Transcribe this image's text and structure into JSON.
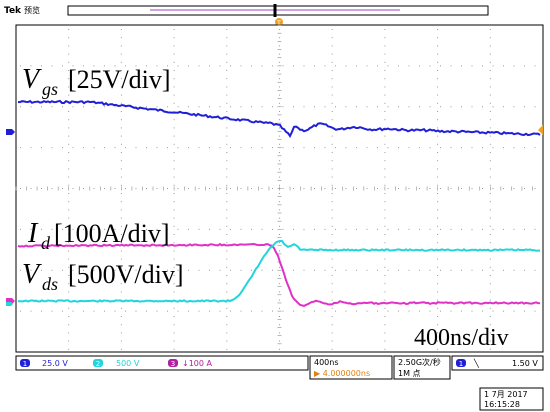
{
  "header": {
    "brand": "Tek",
    "mode": "预览"
  },
  "labels": {
    "ch1_sym": "V",
    "ch1_sub": "gs",
    "ch1_scale": "[25V/div]",
    "ch3_sym": "I",
    "ch3_sub": "d",
    "ch3_scale": "[100A/div]",
    "ch2_sym": "V",
    "ch2_sub": "ds",
    "ch2_scale": "[500V/div]",
    "timebase": "400ns/div"
  },
  "status": {
    "ch1": {
      "num": "1",
      "value": "25.0 V"
    },
    "ch2": {
      "num": "2",
      "value": "500 V"
    },
    "ch3": {
      "num": "3",
      "value": "↓100 A"
    },
    "horiz": {
      "scale": "400ns",
      "position": "▶ 4.000000ns"
    },
    "acq": {
      "rate": "2.50G次/秒",
      "points": "1M 点"
    },
    "trig": {
      "num": "1",
      "slope": "╲",
      "level": "1.50 V"
    },
    "date": "1 7月  2017",
    "time": "16:15:28"
  },
  "colors": {
    "ch1": "#1f1fd6",
    "ch2": "#22d4dc",
    "ch3": "#e030c8",
    "trigger": "#f0a020"
  }
}
